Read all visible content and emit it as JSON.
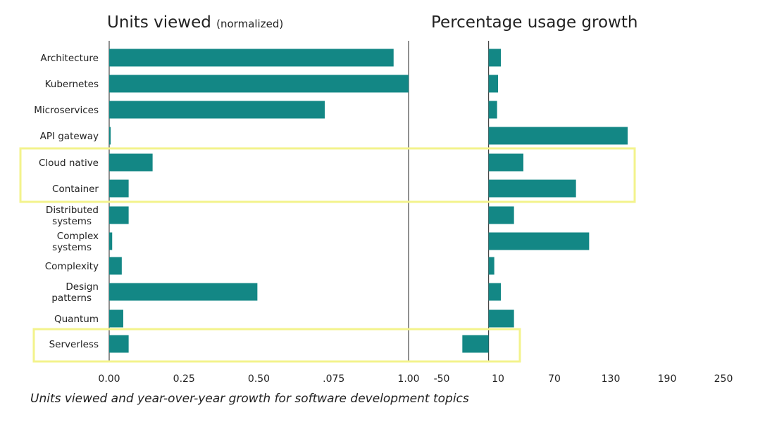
{
  "caption": "Units viewed and year-over-year growth for software development topics",
  "chart_data": [
    {
      "type": "bar",
      "orientation": "horizontal",
      "title": "Units viewed",
      "subtitle": "(normalized)",
      "categories": [
        "Architecture",
        "Kubernetes",
        "Microservices",
        "API gateway",
        "Cloud native",
        "Container",
        "Distributed systems",
        "Complex systems",
        "Complexity",
        "Design patterns",
        "Quantum",
        "Serverless"
      ],
      "values": [
        0.95,
        1.0,
        0.72,
        0.005,
        0.145,
        0.065,
        0.065,
        0.01,
        0.042,
        0.495,
        0.047,
        0.065
      ],
      "xlim": [
        0,
        1.0
      ],
      "tick_labels": [
        "0.00",
        "0.25",
        "0.50",
        ".075",
        "1.00"
      ],
      "color": "#138785"
    },
    {
      "type": "bar",
      "orientation": "horizontal",
      "title": "Percentage usage growth",
      "categories": [
        "Architecture",
        "Kubernetes",
        "Microservices",
        "API gateway",
        "Cloud native",
        "Container",
        "Distributed systems",
        "Complex systems",
        "Complexity",
        "Design patterns",
        "Quantum",
        "Serverless"
      ],
      "values": [
        13,
        10,
        9,
        148,
        37,
        93,
        27,
        107,
        6,
        13,
        27,
        -28
      ],
      "xlim": [
        -50,
        250
      ],
      "tick_labels": [
        "-50",
        "10",
        "70",
        "130",
        "190",
        "250"
      ],
      "color": "#138785"
    }
  ],
  "highlight_groups": [
    [
      "Cloud native",
      "Container"
    ],
    [
      "Serverless"
    ]
  ],
  "highlight_color": "#f3f38c"
}
